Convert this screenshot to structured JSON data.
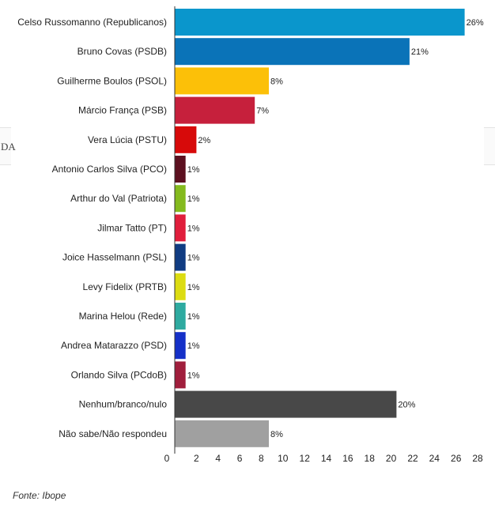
{
  "background_fragment": "DA",
  "source": "Fonte: Ibope",
  "chart_data": {
    "type": "bar",
    "orientation": "horizontal",
    "categories": [
      "Celso Russomanno (Republicanos)",
      "Bruno Covas (PSDB)",
      "Guilherme Boulos (PSOL)",
      "Márcio França (PSB)",
      "Vera Lúcia (PSTU)",
      "Antonio Carlos Silva (PCO)",
      "Arthur do Val (Patriota)",
      "Jilmar Tatto (PT)",
      "Joice Hasselmann (PSL)",
      "Levy Fidelix (PRTB)",
      "Marina Helou (Rede)",
      "Andrea Matarazzo (PSD)",
      "Orlando Silva (PCdoB)",
      "Nenhum/branco/nulo",
      "Não sabe/Não respondeu"
    ],
    "values": [
      26,
      21,
      8,
      7,
      2,
      1,
      1,
      1,
      1,
      1,
      1,
      1,
      1,
      20,
      8
    ],
    "value_labels": [
      "26%",
      "21%",
      "8%",
      "7%",
      "2%",
      "1%",
      "1%",
      "1%",
      "1%",
      "1%",
      "1%",
      "1%",
      "1%",
      "20%",
      "8%"
    ],
    "bar_lengths": [
      26.8,
      21.7,
      8.7,
      7.4,
      2.0,
      1.0,
      1.0,
      1.0,
      1.0,
      1.0,
      1.0,
      1.0,
      1.0,
      20.5,
      8.7
    ],
    "colors": [
      "#0a96cc",
      "#0a73b8",
      "#fcc008",
      "#c6203c",
      "#d70a0a",
      "#5c1020",
      "#84ba1e",
      "#e01e3c",
      "#103c82",
      "#dcdc12",
      "#2eaaa0",
      "#1530c8",
      "#a01e3c",
      "#484848",
      "#a0a0a0"
    ],
    "xlim": [
      0,
      28
    ],
    "xticks": [
      "0",
      "2",
      "4",
      "6",
      "8",
      "10",
      "12",
      "14",
      "16",
      "18",
      "20",
      "22",
      "24",
      "26",
      "28"
    ],
    "title": "",
    "xlabel": "",
    "ylabel": "",
    "grid": false,
    "legend": "none"
  }
}
